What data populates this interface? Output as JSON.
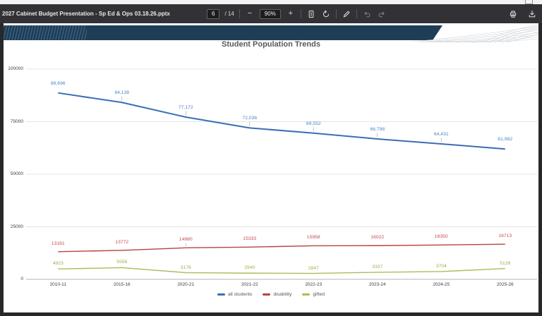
{
  "toolbar": {
    "filename": "2027 Cabinet Budget Presentation - Sp Ed & Ops 03.18.26.pptx",
    "page": {
      "current": "6",
      "of": "/ 14"
    },
    "zoom": {
      "level": "90%",
      "out_label": "−",
      "in_label": "+"
    },
    "icons": {
      "fit_page": "fit-page-icon",
      "rotate": "rotate-icon",
      "draw": "draw-icon",
      "undo": "undo-icon",
      "redo": "redo-icon",
      "print": "print-icon",
      "download": "download-icon",
      "window_control": "maximize-icon"
    }
  },
  "slide": {
    "accent_band_color": "#1e3d57"
  },
  "chart_data": {
    "type": "line",
    "title": "Student Population Trends",
    "categories": [
      "2010-11",
      "2015-16",
      "2020-21",
      "2021-22",
      "2022-23",
      "2023-24",
      "2024-25",
      "2025-26"
    ],
    "series": [
      {
        "name": "all students",
        "color": "#3a6eb5",
        "label_color": "#4d87c7",
        "stroke_width": 2,
        "values": [
          88696,
          84138,
          77172,
          72036,
          69552,
          66798,
          64431,
          61982
        ],
        "labels": [
          "88,696",
          "84,138",
          "77,172",
          "72,036",
          "69,552",
          "66,798",
          "64,431",
          "61,982"
        ],
        "label_offset": 17,
        "leader_points": [
          1,
          2,
          3,
          4,
          5,
          6
        ]
      },
      {
        "name": "disability",
        "color": "#b8433f",
        "label_color": "#c0504d",
        "stroke_width": 1.4,
        "values": [
          13161,
          13772,
          14980,
          15333,
          15958,
          16022,
          16350,
          16713
        ],
        "labels": [
          "13161",
          "13772",
          "14980",
          "15333",
          "15958",
          "16022",
          "16350",
          "16713"
        ],
        "label_offset": 15,
        "leader_points": [
          2
        ]
      },
      {
        "name": "gifted",
        "color": "#a9bd5a",
        "label_color": "#9cb24c",
        "stroke_width": 1.4,
        "values": [
          4923,
          5556,
          3176,
          2940,
          2847,
          3337,
          3704,
          5128
        ],
        "labels": [
          "4923",
          "5556",
          "3176",
          "2940",
          "2847",
          "3337",
          "3704",
          "5128"
        ],
        "label_offset": 11,
        "leader_points": []
      }
    ],
    "ylim": [
      0,
      100000
    ],
    "yticks": [
      {
        "value": 0,
        "label": "0"
      },
      {
        "value": 25000,
        "label": "25000"
      },
      {
        "value": 50000,
        "label": "50000"
      },
      {
        "value": 75000,
        "label": "75000"
      },
      {
        "value": 100000,
        "label": "100000"
      }
    ],
    "grid": true,
    "legend_position": "bottom"
  }
}
